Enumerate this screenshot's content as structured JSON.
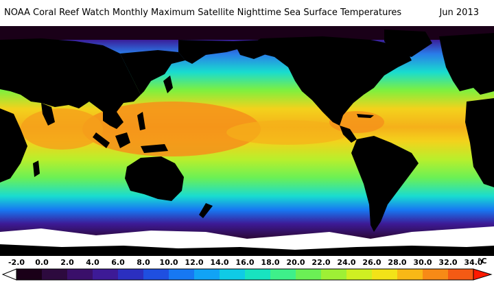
{
  "title": "NOAA Coral Reef Watch Monthly Maximum Satellite Nighttime Sea Surface Temperatures",
  "date": "Jun 2013",
  "legend": {
    "unit": "°C",
    "min": -2.0,
    "max": 34.0,
    "ticks": [
      "-2.0",
      "0.0",
      "2.0",
      "4.0",
      "6.0",
      "8.0",
      "10.0",
      "12.0",
      "14.0",
      "16.0",
      "18.0",
      "20.0",
      "22.0",
      "24.0",
      "26.0",
      "28.0",
      "30.0",
      "32.0",
      "34.0"
    ],
    "colors": [
      "#1a0018",
      "#2d0a3e",
      "#3a0f6a",
      "#3d1a96",
      "#2b2fc0",
      "#1f4fe0",
      "#1778f2",
      "#11a3f5",
      "#0fcbe6",
      "#18e3c0",
      "#3ef08a",
      "#6bf055",
      "#9ef035",
      "#cfef22",
      "#f2e318",
      "#f8b816",
      "#f78a16",
      "#f45a14",
      "#e8300f"
    ],
    "left_arrow_color": "#ffffff",
    "right_arrow_color": "#ff1a00"
  },
  "colors": {
    "land": "#000000",
    "ice": "#ffffff",
    "warm_pool": "#f5901a",
    "tropical": "#f3d21c",
    "subtropical": "#7ff03e",
    "temperate": "#19dcd0",
    "cool": "#2a7be8",
    "cold": "#3a1e9a",
    "polar": "#2d0a3e"
  }
}
